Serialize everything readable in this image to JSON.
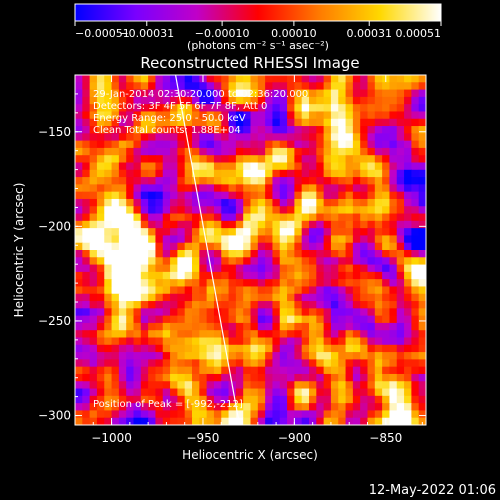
{
  "colorbar": {
    "min": -0.00051,
    "max": 0.00051,
    "tick_labels": [
      "-0.00051",
      "-0.00031",
      "-0.00010",
      "0.00010",
      "0.00031",
      "0.00051"
    ],
    "unit_label": "(photons cm⁻² s⁻¹ asec⁻²)",
    "stops": [
      "#0000ff",
      "#7a00ff",
      "#c000c8",
      "#ff0000",
      "#ff7a00",
      "#ffd800",
      "#ffffff"
    ]
  },
  "chart_data": {
    "type": "heatmap",
    "title": "Reconstructed RHESSI Image",
    "xlabel": "Heliocentric X (arcsec)",
    "ylabel": "Heliocentric Y (arcsec)",
    "xlim": [
      -1020,
      -828
    ],
    "ylim": [
      -305,
      -120
    ],
    "x_ticks": [
      -1000,
      -950,
      -900,
      -850
    ],
    "y_ticks": [
      -150,
      -200,
      -250,
      -300
    ],
    "x_tick_labels": [
      "-1000",
      "-950",
      "-900",
      "-850"
    ],
    "y_tick_labels": [
      "-150",
      "-200",
      "-250",
      "-300"
    ],
    "limb_line": [
      [
        -965,
        -120
      ],
      [
        -930,
        -305
      ]
    ],
    "peak_position": [
      -992,
      -212
    ],
    "annotations": [
      "29-Jan-2014 02:30:20.000 to 02:36:20.000",
      "Detectors: 3F 4F 5F 6F 7F 8F, Att 0",
      "Energy Range: 25.0 - 50.0 keV",
      "Clean     Total counts: 1.88E+04"
    ],
    "peak_label": "Position of Peak = [-992,-212]"
  },
  "footer": {
    "timestamp": "12-May-2022 01:06"
  }
}
